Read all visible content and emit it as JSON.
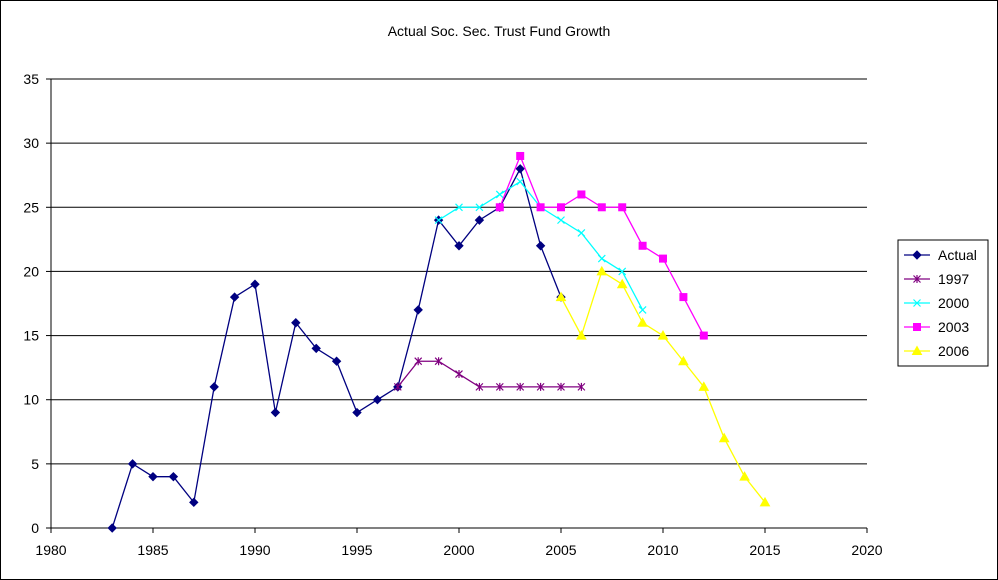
{
  "chart_data": {
    "type": "line",
    "title": "Actual Soc. Sec. Trust Fund Growth",
    "xlabel": "",
    "ylabel": "",
    "xlim": [
      1980,
      2020
    ],
    "ylim": [
      0,
      35
    ],
    "x_ticks": [
      "1980",
      "1985",
      "1990",
      "1995",
      "2000",
      "2005",
      "2010",
      "2015",
      "2020"
    ],
    "y_ticks": [
      "0",
      "5",
      "10",
      "15",
      "20",
      "25",
      "30",
      "35"
    ],
    "grid": "horizontal",
    "legend_position": "right",
    "series": [
      {
        "name": "Actual",
        "color": "#000080",
        "marker": "diamond",
        "x": [
          1983,
          1984,
          1985,
          1986,
          1987,
          1988,
          1989,
          1990,
          1991,
          1992,
          1993,
          1994,
          1995,
          1996,
          1997,
          1998,
          1999,
          2000,
          2001,
          2002,
          2003,
          2004,
          2005
        ],
        "y": [
          0,
          5,
          4,
          4,
          2,
          11,
          18,
          19,
          9,
          16,
          14,
          13,
          9,
          10,
          11,
          17,
          24,
          22,
          24,
          25,
          28,
          22,
          18
        ]
      },
      {
        "name": "1997",
        "color": "#800080",
        "marker": "star",
        "x": [
          1997,
          1998,
          1999,
          2000,
          2001,
          2002,
          2003,
          2004,
          2005,
          2006
        ],
        "y": [
          11,
          13,
          13,
          12,
          11,
          11,
          11,
          11,
          11,
          11
        ]
      },
      {
        "name": "2000",
        "color": "#00FFFF",
        "marker": "x",
        "x": [
          1999,
          2000,
          2001,
          2002,
          2003,
          2004,
          2005,
          2006,
          2007,
          2008,
          2009
        ],
        "y": [
          24,
          25,
          25,
          26,
          27,
          25,
          24,
          23,
          21,
          20,
          17
        ]
      },
      {
        "name": "2003",
        "color": "#FF00FF",
        "marker": "square",
        "x": [
          2002,
          2003,
          2004,
          2005,
          2006,
          2007,
          2008,
          2009,
          2010,
          2011,
          2012
        ],
        "y": [
          25,
          29,
          25,
          25,
          26,
          25,
          25,
          22,
          21,
          18,
          15
        ]
      },
      {
        "name": "2006",
        "color": "#FFFF00",
        "marker": "triangle",
        "x": [
          2005,
          2006,
          2007,
          2008,
          2009,
          2010,
          2011,
          2012,
          2013,
          2014,
          2015
        ],
        "y": [
          18,
          15,
          20,
          19,
          16,
          15,
          13,
          11,
          7,
          4,
          2
        ]
      }
    ]
  }
}
